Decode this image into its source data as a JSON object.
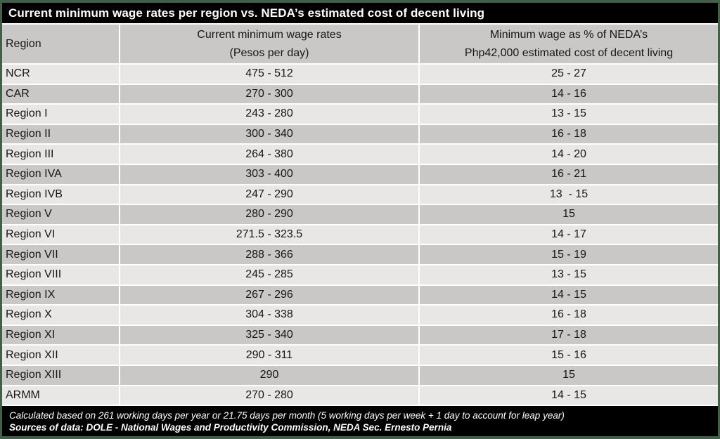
{
  "title": "Current minimum wage rates per region vs. NEDA’s estimated cost of decent living",
  "colors": {
    "outer_border": "#41604a",
    "bar_background": "#000000",
    "bar_text": "#ffffff",
    "row_light": "#e8e7e5",
    "row_dark": "#cac8c6",
    "cell_text": "#161616"
  },
  "header": {
    "region": "Region",
    "wage_line1": "Current minimum wage rates",
    "wage_line2": "(Pesos per day)",
    "pct_line1": "Minimum wage as % of NEDA’s",
    "pct_line2": "Php42,000 estimated cost of decent living"
  },
  "footer": {
    "note": "Calculated based on 261 working days per year or 21.75 days per month (5 working days per week + 1 day to account for leap year)",
    "sources": "Sources of data: DOLE - National Wages and Productivity Commission, NEDA Sec. Ernesto Pernia"
  },
  "chart_data": {
    "type": "table",
    "title": "Current minimum wage rates per region vs. NEDA’s estimated cost of decent living",
    "columns": [
      "Region",
      "Current minimum wage rates (Pesos per day)",
      "Minimum wage as % of NEDA’s Php42,000 estimated cost of decent living"
    ],
    "rows": [
      {
        "region": "NCR",
        "wage": "475 - 512",
        "pct": "25 - 27"
      },
      {
        "region": "CAR",
        "wage": "270 - 300",
        "pct": "14 - 16"
      },
      {
        "region": "Region I",
        "wage": "243 - 280",
        "pct": "13 - 15"
      },
      {
        "region": "Region II",
        "wage": "300 - 340",
        "pct": "16 - 18"
      },
      {
        "region": "Region III",
        "wage": "264 - 380",
        "pct": "14 - 20"
      },
      {
        "region": "Region IVA",
        "wage": "303 - 400",
        "pct": "16 - 21"
      },
      {
        "region": "Region IVB",
        "wage": "247 - 290",
        "pct": "13  - 15"
      },
      {
        "region": "Region V",
        "wage": "280 - 290",
        "pct": "15"
      },
      {
        "region": "Region VI",
        "wage": "271.5 - 323.5",
        "pct": "14 - 17"
      },
      {
        "region": "Region VII",
        "wage": "288 - 366",
        "pct": "15 - 19"
      },
      {
        "region": "Region VIII",
        "wage": "245 - 285",
        "pct": "13 - 15"
      },
      {
        "region": "Region IX",
        "wage": "267 - 296",
        "pct": "14 - 15"
      },
      {
        "region": "Region X",
        "wage": "304 - 338",
        "pct": "16 - 18"
      },
      {
        "region": "Region XI",
        "wage": "325 - 340",
        "pct": "17 - 18"
      },
      {
        "region": "Region XII",
        "wage": "290 - 311",
        "pct": "15 - 16"
      },
      {
        "region": "Region XIII",
        "wage": "290",
        "pct": "15"
      },
      {
        "region": "ARMM",
        "wage": "270 - 280",
        "pct": "14 - 15"
      }
    ],
    "layout": {
      "note": "alternating light/dark gray rows, white gridlines, black title and footnote bars, dark green outer border"
    }
  }
}
